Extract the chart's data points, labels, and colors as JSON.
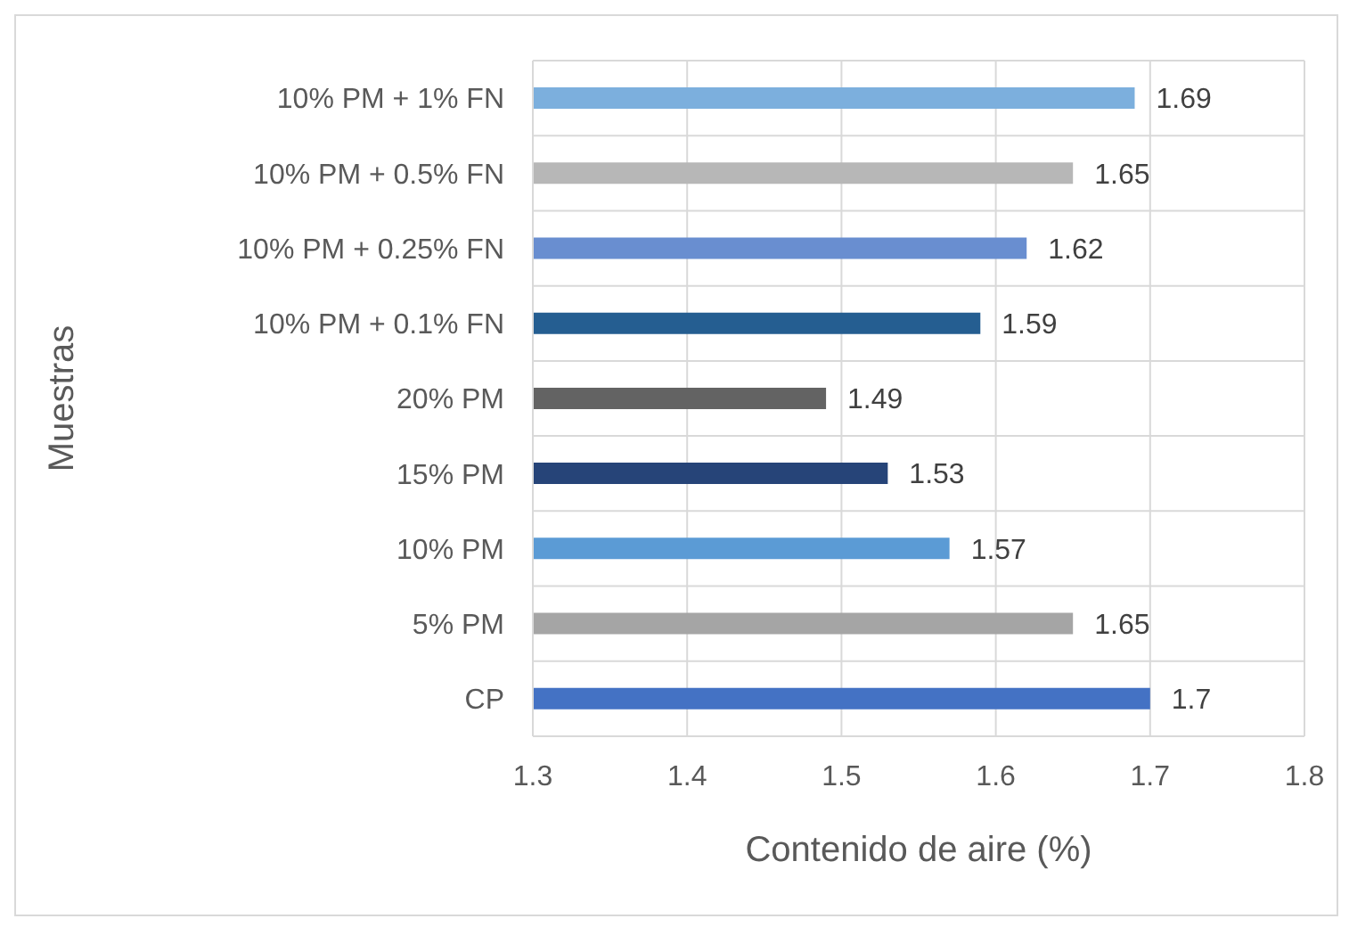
{
  "chart_data": {
    "type": "bar",
    "orientation": "horizontal",
    "xlabel": "Contenido de aire (%)",
    "ylabel": "Muestras",
    "categories": [
      "10% PM + 1% FN",
      "10% PM + 0.5% FN",
      "10% PM + 0.25% FN",
      "10% PM + 0.1% FN",
      "20% PM",
      "15% PM",
      "10% PM",
      "5% PM",
      "CP"
    ],
    "values": [
      1.69,
      1.65,
      1.62,
      1.59,
      1.49,
      1.53,
      1.57,
      1.65,
      1.7
    ],
    "colors": [
      "#7cafdd",
      "#b7b7b7",
      "#698ed0",
      "#255e91",
      "#636363",
      "#264478",
      "#5b9bd5",
      "#a5a5a5",
      "#4472c4"
    ],
    "xlim": [
      1.3,
      1.8
    ],
    "xticks": [
      1.3,
      1.4,
      1.5,
      1.6,
      1.7,
      1.8
    ],
    "grid": true,
    "data_labels": true
  }
}
